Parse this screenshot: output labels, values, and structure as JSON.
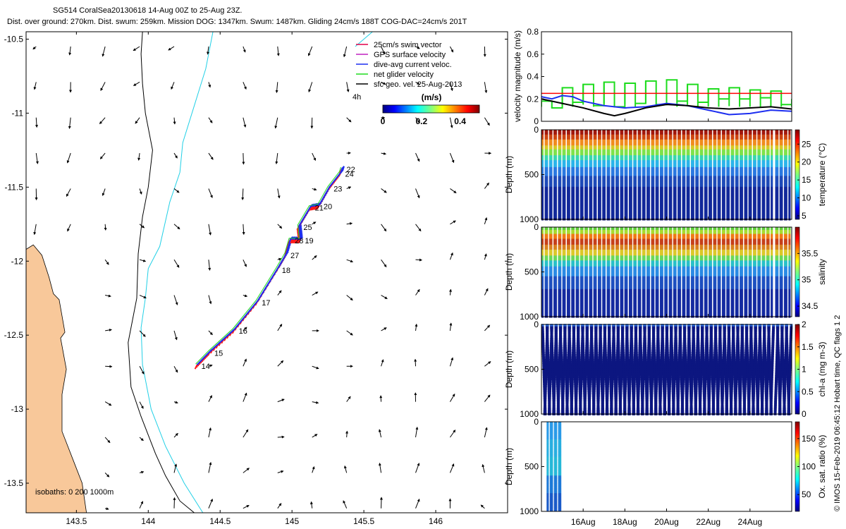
{
  "header": {
    "line1": "SG514 CoralSea20130618 14-Aug 00Z to 25-Aug 23Z.",
    "line2": "Dist. over ground: 270km. Dist. swum: 259km. Mission DOG: 1347km. Swum: 1487km. Gliding 24cm/s 188T COG-DAC=24cm/s 201T"
  },
  "credit": "© IMOS 15-Feb-2019 06:45:12 Hobart time, QC flags 1  2",
  "colors": {
    "land": "#f8c89a",
    "track": "#ff1a1a",
    "current": "#1d2ef0",
    "net": "#1edc1e",
    "coast_isobath_200": "#000000",
    "isobath_1000": "#22d0e6"
  },
  "chart_data": [
    {
      "type": "map",
      "name": "track-map",
      "xlim": [
        143.15,
        146.5
      ],
      "ylim": [
        -13.7,
        -10.45
      ],
      "xticks": [
        143.5,
        144,
        144.5,
        145,
        145.5,
        146
      ],
      "yticks": [
        -10.5,
        -11,
        -11.5,
        -12,
        -12.5,
        -13,
        -13.5
      ],
      "xtick_labels": [
        "143.5",
        "144",
        "144.5",
        "145",
        "145.5",
        "146"
      ],
      "ytick_labels": [
        "-10.5",
        "-11",
        "-11.5",
        "-12",
        "-12.5",
        "-13",
        "-13.5"
      ],
      "legend": [
        {
          "label": "25cm/s swim vector",
          "color": "#e0004a"
        },
        {
          "label": "GPS surface velocity",
          "color": "#c020c0"
        },
        {
          "label": "dive-avg current veloc.",
          "color": "#1d2ef0"
        },
        {
          "label": "net glider velocity",
          "color": "#1edc1e"
        },
        {
          "label": "sfc geo. vel. 25-Aug-2013",
          "color": "#000000"
        }
      ],
      "legend_placement": "top-right",
      "arrow_scale_label": "4h",
      "colorbar": {
        "label": "(m/s)",
        "ticks": [
          "0",
          "0.2",
          "0.4"
        ],
        "range": [
          0,
          0.5
        ]
      },
      "isobath_label": "isobaths: 0   200  1000m",
      "track": [
        {
          "day": "14",
          "lon": 144.34,
          "lat": -12.7
        },
        {
          "day": "15",
          "lon": 144.43,
          "lat": -12.61
        },
        {
          "day": "16",
          "lon": 144.6,
          "lat": -12.46
        },
        {
          "day": "17",
          "lon": 144.76,
          "lat": -12.27
        },
        {
          "day": "18",
          "lon": 144.9,
          "lat": -12.05
        },
        {
          "day": "27",
          "lon": 144.96,
          "lat": -11.95
        },
        {
          "day": "28",
          "lon": 144.99,
          "lat": -11.85
        },
        {
          "day": "19",
          "lon": 145.06,
          "lat": -11.85
        },
        {
          "day": "25",
          "lon": 145.05,
          "lat": -11.76
        },
        {
          "day": "21",
          "lon": 145.13,
          "lat": -11.63
        },
        {
          "day": "20",
          "lon": 145.19,
          "lat": -11.62
        },
        {
          "day": "23",
          "lon": 145.26,
          "lat": -11.5
        },
        {
          "day": "24",
          "lon": 145.34,
          "lat": -11.4
        },
        {
          "day": "22",
          "lon": 145.35,
          "lat": -11.37
        }
      ],
      "coastline": [
        [
          143.15,
          -11.92
        ],
        [
          143.2,
          -11.89
        ],
        [
          143.26,
          -11.96
        ],
        [
          143.31,
          -12.11
        ],
        [
          143.34,
          -12.22
        ],
        [
          143.38,
          -12.26
        ],
        [
          143.42,
          -12.48
        ],
        [
          143.39,
          -12.52
        ],
        [
          143.43,
          -12.73
        ],
        [
          143.4,
          -12.9
        ],
        [
          143.4,
          -13.15
        ],
        [
          143.48,
          -13.35
        ],
        [
          143.54,
          -13.5
        ],
        [
          143.57,
          -13.7
        ]
      ],
      "isobath_200": [
        [
          143.96,
          -10.45
        ],
        [
          143.95,
          -10.6
        ],
        [
          143.96,
          -10.8
        ],
        [
          143.98,
          -11.0
        ],
        [
          144.03,
          -11.25
        ],
        [
          144.0,
          -11.5
        ],
        [
          143.96,
          -11.7
        ],
        [
          143.93,
          -11.95
        ],
        [
          143.92,
          -12.25
        ],
        [
          143.86,
          -12.55
        ],
        [
          143.88,
          -12.85
        ],
        [
          143.95,
          -13.05
        ],
        [
          144.05,
          -13.3
        ],
        [
          144.12,
          -13.45
        ],
        [
          144.22,
          -13.62
        ],
        [
          144.32,
          -13.7
        ]
      ],
      "isobath_1000": [
        [
          144.45,
          -10.45
        ],
        [
          144.4,
          -10.7
        ],
        [
          144.32,
          -10.95
        ],
        [
          144.24,
          -11.2
        ],
        [
          144.22,
          -11.4
        ],
        [
          144.15,
          -11.6
        ],
        [
          144.08,
          -11.9
        ],
        [
          144.0,
          -12.05
        ],
        [
          143.98,
          -12.25
        ],
        [
          143.95,
          -12.45
        ],
        [
          143.96,
          -12.7
        ],
        [
          144.02,
          -13.0
        ],
        [
          144.12,
          -13.25
        ],
        [
          144.25,
          -13.5
        ],
        [
          144.38,
          -13.7
        ]
      ],
      "isobath_1000_fragment": [
        [
          145.44,
          -10.55
        ],
        [
          145.5,
          -10.5
        ],
        [
          145.56,
          -10.45
        ]
      ]
    },
    {
      "type": "line",
      "name": "velocity-panel",
      "ylabel": "velocity magnitude (m/s)",
      "ylim": [
        0,
        0.8
      ],
      "yticks": [
        0,
        0.2,
        0.4,
        0.6,
        0.8
      ],
      "ytick_labels": [
        "0",
        "0.2",
        "0.4",
        "0.6",
        "0.8"
      ],
      "xlim": [
        14.0,
        26.0
      ],
      "series": [
        {
          "name": "net glider velocity",
          "color": "#1edc1e",
          "x": [
            14.0,
            14.5,
            15.0,
            15.5,
            16.0,
            16.5,
            17.0,
            17.5,
            18.0,
            18.5,
            19.0,
            19.5,
            20.0,
            20.5,
            21.0,
            21.5,
            22.0,
            22.5,
            23.0,
            23.5,
            24.0,
            24.5,
            25.0,
            25.5,
            26.0
          ],
          "y": [
            0.18,
            0.12,
            0.3,
            0.17,
            0.33,
            0.14,
            0.35,
            0.13,
            0.34,
            0.16,
            0.36,
            0.15,
            0.37,
            0.18,
            0.33,
            0.17,
            0.29,
            0.2,
            0.3,
            0.2,
            0.28,
            0.21,
            0.27,
            0.15,
            0.2
          ]
        },
        {
          "name": "dive-avg current veloc.",
          "color": "#1d2ef0",
          "x": [
            14.0,
            14.5,
            15.0,
            15.5,
            16.0,
            17.0,
            18.0,
            19.0,
            20.0,
            21.0,
            22.0,
            23.0,
            24.0,
            25.0,
            26.0
          ],
          "y": [
            0.22,
            0.2,
            0.23,
            0.22,
            0.18,
            0.14,
            0.12,
            0.13,
            0.16,
            0.14,
            0.1,
            0.06,
            0.07,
            0.1,
            0.09
          ]
        },
        {
          "name": "surface geostrophic velocity",
          "color": "#000000",
          "x": [
            14.0,
            15.0,
            16.0,
            17.0,
            17.5,
            18.0,
            19.0,
            20.0,
            21.0,
            22.0,
            23.0,
            24.0,
            25.0,
            26.0
          ],
          "y": [
            0.2,
            0.16,
            0.12,
            0.07,
            0.05,
            0.07,
            0.12,
            0.15,
            0.14,
            0.12,
            0.11,
            0.12,
            0.13,
            0.11
          ]
        },
        {
          "name": "25cm/s swim vector",
          "color": "#ff0000",
          "x": [
            14.0,
            26.0
          ],
          "y": [
            0.25,
            0.25
          ]
        }
      ]
    },
    {
      "type": "scatter",
      "name": "temperature-section",
      "ylabel": "Depth (m)",
      "clabel": "temperature (°C)",
      "ylim": [
        1000,
        0
      ],
      "yticks": [
        0,
        500,
        1000
      ],
      "ytick_labels": [
        "0",
        "500",
        "1000"
      ],
      "crange": [
        4,
        29
      ],
      "cticks": [
        "5",
        "10",
        "15",
        "20",
        "25"
      ],
      "profiles": 112,
      "profile_max_depth": 1000,
      "colors_by_depth": [
        [
          0,
          "#a2190e"
        ],
        [
          60,
          "#cc4411"
        ],
        [
          120,
          "#f08c1e"
        ],
        [
          180,
          "#d6c826"
        ],
        [
          230,
          "#7ee24a"
        ],
        [
          290,
          "#38d6b0"
        ],
        [
          350,
          "#2ab4ea"
        ],
        [
          420,
          "#2a78e0"
        ],
        [
          520,
          "#1e4ab8"
        ],
        [
          640,
          "#12289a"
        ],
        [
          1000,
          "#0a1270"
        ]
      ],
      "gap_after_profile": 104
    },
    {
      "type": "scatter",
      "name": "salinity-section",
      "ylabel": "Depth (m)",
      "clabel": "salinity",
      "ylim": [
        1000,
        0
      ],
      "yticks": [
        0,
        500,
        1000
      ],
      "ytick_labels": [
        "0",
        "500",
        "1000"
      ],
      "crange": [
        34.3,
        36.0
      ],
      "cticks": [
        "34.5",
        "35",
        "35.5"
      ],
      "profiles": 112,
      "profile_max_depth": 1000,
      "colors_by_depth": [
        [
          0,
          "#5fce3c"
        ],
        [
          40,
          "#a8dc30"
        ],
        [
          80,
          "#f07a14"
        ],
        [
          140,
          "#c6401a"
        ],
        [
          200,
          "#d8801e"
        ],
        [
          260,
          "#dcc82a"
        ],
        [
          320,
          "#6ad85a"
        ],
        [
          380,
          "#28c0c8"
        ],
        [
          450,
          "#2a8ae4"
        ],
        [
          560,
          "#1e50c0"
        ],
        [
          700,
          "#142aa0"
        ],
        [
          1000,
          "#0c1680"
        ]
      ],
      "gap_after_profile": 104
    },
    {
      "type": "scatter",
      "name": "chl-section",
      "ylabel": "Depth (m)",
      "clabel": "chl-a (mg m-3)",
      "ylim": [
        1000,
        0
      ],
      "yticks": [
        0,
        500,
        1000
      ],
      "ytick_labels": [
        "0",
        "500",
        "1000"
      ],
      "crange": [
        0,
        2
      ],
      "cticks": [
        "0",
        "0.5",
        "1",
        "1.5",
        "2"
      ],
      "profiles": 112,
      "profile_max_depth": 1000,
      "colors_by_depth": [
        [
          0,
          "#2a6ae0"
        ],
        [
          30,
          "#0c1680"
        ],
        [
          1000,
          "#0c1680"
        ]
      ],
      "gap_after_profile": 104
    },
    {
      "type": "scatter",
      "name": "oxygen-section",
      "ylabel": "Depth (m)",
      "clabel": "Ox. sat. ratio (%)",
      "ylim": [
        1000,
        0
      ],
      "yticks": [
        0,
        500,
        1000
      ],
      "ytick_labels": [
        "0",
        "500",
        "1000"
      ],
      "crange": [
        20,
        180
      ],
      "cticks": [
        "50",
        "100",
        "150"
      ],
      "profiles": 7,
      "profile_max_depth": 1000,
      "colors_by_depth": [
        [
          0,
          "#2a9ae8"
        ],
        [
          200,
          "#28aee0"
        ],
        [
          400,
          "#26b8d8"
        ],
        [
          600,
          "#1e7ad8"
        ],
        [
          800,
          "#1a5ac8"
        ],
        [
          1000,
          "#1438b0"
        ]
      ],
      "gap_after_profile": -1
    }
  ],
  "time_axis": {
    "xlim": [
      14.0,
      26.0
    ],
    "ticks": [
      16,
      18,
      20,
      22,
      24
    ],
    "labels": [
      "16Aug",
      "18Aug",
      "20Aug",
      "22Aug",
      "24Aug"
    ]
  }
}
